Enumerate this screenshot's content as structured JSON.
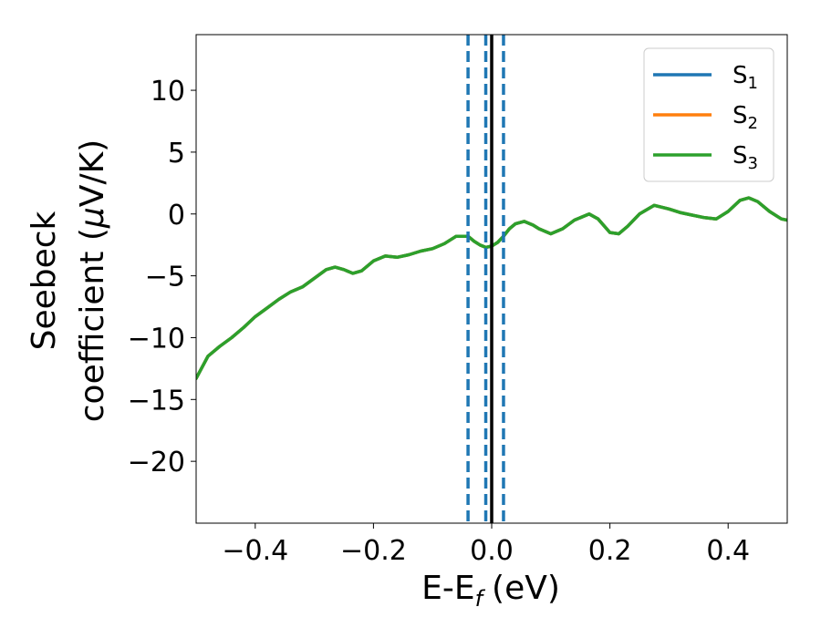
{
  "chart_data": {
    "type": "line",
    "xlabel": "E-E",
    "xlabel_sub": "f",
    "xlabel_unit": "(eV)",
    "ylabel_line1": "Seebeck",
    "ylabel_line2": "coefficient  (",
    "ylabel_mu": "μ",
    "ylabel_unit": "V/K)",
    "xlim": [
      -0.5,
      0.5
    ],
    "ylim": [
      -25,
      14.5
    ],
    "xticks": [
      -0.4,
      -0.2,
      0.0,
      0.2,
      0.4
    ],
    "xtick_labels": [
      "−0.4",
      "−0.2",
      "0.0",
      "0.2",
      "0.4"
    ],
    "yticks": [
      10,
      5,
      0,
      -5,
      -10,
      -15,
      -20
    ],
    "ytick_labels": [
      "10",
      "5",
      "0",
      "−5",
      "−10",
      "−15",
      "−20"
    ],
    "grid": false,
    "legend_position": "top-right",
    "x": [
      -0.5,
      -0.48,
      -0.46,
      -0.44,
      -0.42,
      -0.4,
      -0.38,
      -0.36,
      -0.34,
      -0.32,
      -0.3,
      -0.28,
      -0.265,
      -0.25,
      -0.235,
      -0.22,
      -0.2,
      -0.18,
      -0.16,
      -0.14,
      -0.12,
      -0.1,
      -0.08,
      -0.06,
      -0.04,
      -0.03,
      -0.02,
      -0.01,
      0.0,
      0.01,
      0.02,
      0.03,
      0.04,
      0.055,
      0.07,
      0.08,
      0.1,
      0.12,
      0.14,
      0.165,
      0.18,
      0.2,
      0.215,
      0.23,
      0.25,
      0.275,
      0.3,
      0.32,
      0.34,
      0.36,
      0.38,
      0.4,
      0.42,
      0.435,
      0.45,
      0.47,
      0.49,
      0.5
    ],
    "series": [
      {
        "name": "S",
        "name_sub": "1",
        "color": "#1f77b4",
        "values": [
          -13.3,
          -11.5,
          -10.7,
          -10.0,
          -9.2,
          -8.3,
          -7.6,
          -6.9,
          -6.3,
          -5.9,
          -5.2,
          -4.5,
          -4.3,
          -4.5,
          -4.8,
          -4.6,
          -3.8,
          -3.4,
          -3.5,
          -3.3,
          -3.0,
          -2.8,
          -2.4,
          -1.8,
          -1.8,
          -2.2,
          -2.5,
          -2.7,
          -2.6,
          -2.3,
          -1.8,
          -1.2,
          -0.8,
          -0.6,
          -0.9,
          -1.2,
          -1.6,
          -1.2,
          -0.5,
          0.0,
          -0.4,
          -1.5,
          -1.6,
          -1.0,
          0.0,
          0.7,
          0.4,
          0.1,
          -0.1,
          -0.3,
          -0.4,
          0.2,
          1.1,
          1.3,
          1.0,
          0.2,
          -0.4,
          -0.5
        ]
      },
      {
        "name": "S",
        "name_sub": "2",
        "color": "#ff7f0e",
        "values": [
          -13.3,
          -11.5,
          -10.7,
          -10.0,
          -9.2,
          -8.3,
          -7.6,
          -6.9,
          -6.3,
          -5.9,
          -5.2,
          -4.5,
          -4.3,
          -4.5,
          -4.8,
          -4.6,
          -3.8,
          -3.4,
          -3.5,
          -3.3,
          -3.0,
          -2.8,
          -2.4,
          -1.8,
          -1.8,
          -2.2,
          -2.5,
          -2.7,
          -2.6,
          -2.3,
          -1.8,
          -1.2,
          -0.8,
          -0.6,
          -0.9,
          -1.2,
          -1.6,
          -1.2,
          -0.5,
          0.0,
          -0.4,
          -1.5,
          -1.6,
          -1.0,
          0.0,
          0.7,
          0.4,
          0.1,
          -0.1,
          -0.3,
          -0.4,
          0.2,
          1.1,
          1.3,
          1.0,
          0.2,
          -0.4,
          -0.5
        ]
      },
      {
        "name": "S",
        "name_sub": "3",
        "color": "#2ca02c",
        "values": [
          -13.3,
          -11.5,
          -10.7,
          -10.0,
          -9.2,
          -8.3,
          -7.6,
          -6.9,
          -6.3,
          -5.9,
          -5.2,
          -4.5,
          -4.3,
          -4.5,
          -4.8,
          -4.6,
          -3.8,
          -3.4,
          -3.5,
          -3.3,
          -3.0,
          -2.8,
          -2.4,
          -1.8,
          -1.8,
          -2.2,
          -2.5,
          -2.7,
          -2.6,
          -2.3,
          -1.8,
          -1.2,
          -0.8,
          -0.6,
          -0.9,
          -1.2,
          -1.6,
          -1.2,
          -0.5,
          0.0,
          -0.4,
          -1.5,
          -1.6,
          -1.0,
          0.0,
          0.7,
          0.4,
          0.1,
          -0.1,
          -0.3,
          -0.4,
          0.2,
          1.1,
          1.3,
          1.0,
          0.2,
          -0.4,
          -0.5
        ]
      }
    ],
    "vertical_lines": [
      {
        "x": -0.04,
        "style": "dashed",
        "color": "#1f77b4"
      },
      {
        "x": -0.01,
        "style": "dashed",
        "color": "#1f77b4"
      },
      {
        "x": 0.02,
        "style": "dashed",
        "color": "#1f77b4"
      },
      {
        "x": 0.0,
        "style": "solid",
        "color": "#000000"
      }
    ]
  }
}
